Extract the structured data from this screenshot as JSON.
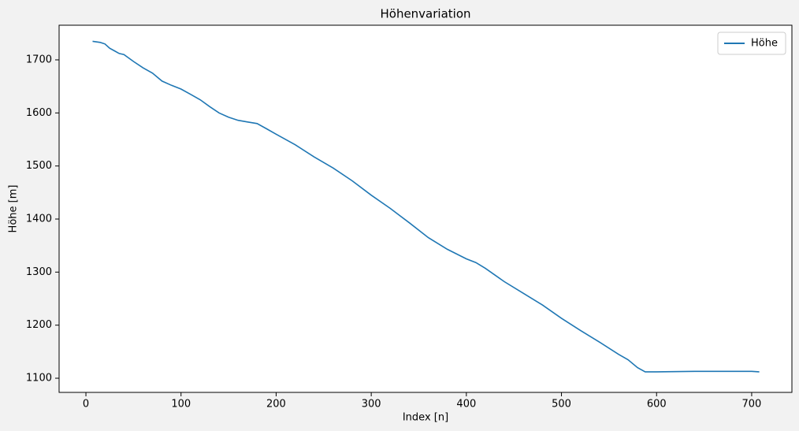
{
  "chart_data": {
    "type": "line",
    "title": "Höhenvariation",
    "x_label": "Index [n]",
    "y_label": "Höhe [m]",
    "x": [
      7,
      15,
      20,
      25,
      30,
      35,
      40,
      50,
      60,
      70,
      80,
      90,
      100,
      110,
      120,
      130,
      140,
      150,
      160,
      170,
      180,
      190,
      200,
      220,
      240,
      260,
      280,
      300,
      320,
      340,
      360,
      380,
      400,
      410,
      420,
      440,
      460,
      480,
      500,
      520,
      540,
      560,
      570,
      580,
      588,
      600,
      640,
      700,
      708
    ],
    "series": [
      {
        "name": "Höhe",
        "color": "#1f77b4",
        "values": [
          1735,
          1733,
          1730,
          1722,
          1717,
          1712,
          1710,
          1697,
          1685,
          1675,
          1660,
          1652,
          1645,
          1635,
          1625,
          1612,
          1600,
          1592,
          1586,
          1583,
          1580,
          1570,
          1560,
          1540,
          1517,
          1496,
          1472,
          1445,
          1420,
          1393,
          1365,
          1343,
          1325,
          1318,
          1307,
          1282,
          1260,
          1238,
          1213,
          1190,
          1168,
          1145,
          1135,
          1120,
          1112,
          1112,
          1113,
          1113,
          1112
        ]
      }
    ],
    "xlim": [
      -28.2,
      742.3
    ],
    "ylim": [
      1073.3,
      1765.3
    ],
    "xticks": [
      0,
      100,
      200,
      300,
      400,
      500,
      600,
      700
    ],
    "yticks": [
      1100,
      1200,
      1300,
      1400,
      1500,
      1600,
      1700
    ],
    "legend": "upper right",
    "grid": false
  }
}
